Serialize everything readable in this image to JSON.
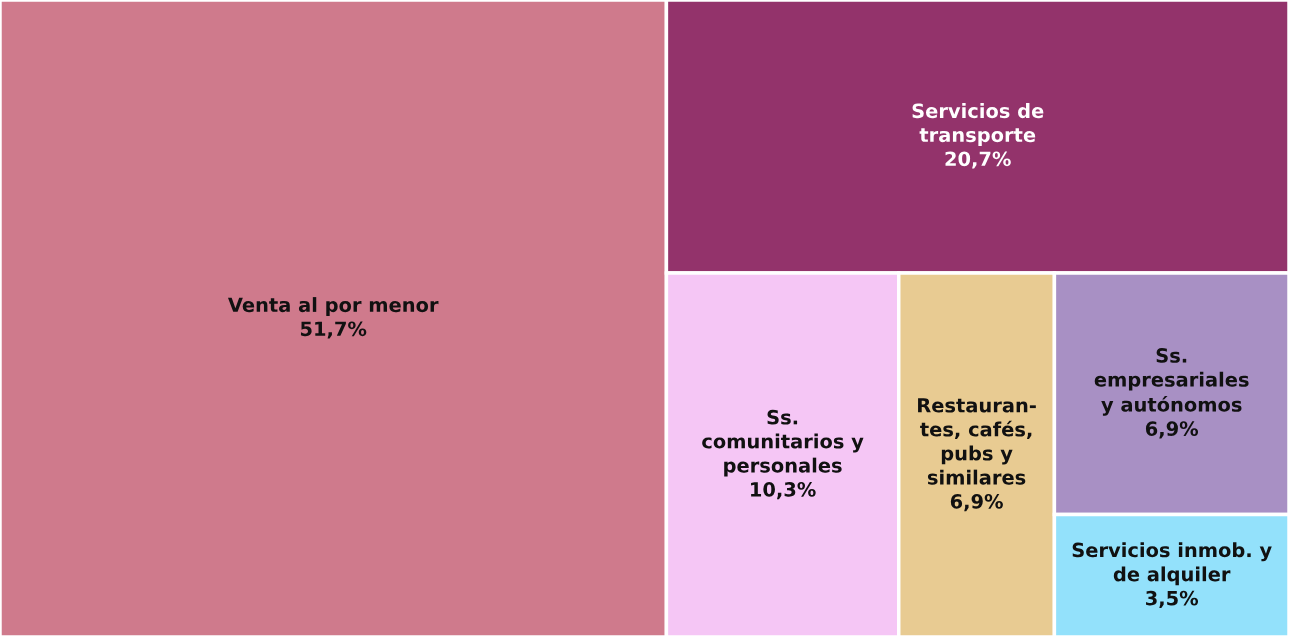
{
  "chart_data": {
    "type": "other",
    "categories": [
      "Venta al por menor",
      "Servicios de\ntransporte",
      "Ss.\ncomunitarios y\npersonales",
      "Restauran-\ntes, cafés,\npubs y\nsimilares",
      "Ss.\nempresariales\ny autónomos",
      "Servicios inmob. y\nde alquiler"
    ],
    "values": [
      51.7,
      20.7,
      10.3,
      6.9,
      6.9,
      3.5
    ],
    "value_labels": [
      "51,7%",
      "20,7%",
      "10,3%",
      "6,9%",
      "6,9%",
      "3,5%"
    ],
    "colors": [
      "#cf7a8c",
      "#93336b",
      "#f5c6f5",
      "#e8cb92",
      "#a890c4",
      "#93e1fb"
    ]
  }
}
